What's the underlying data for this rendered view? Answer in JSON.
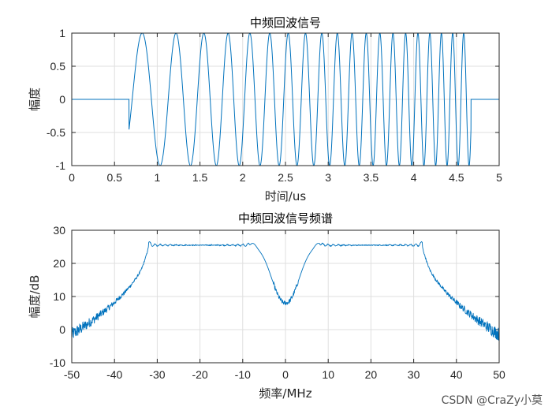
{
  "watermark": "CSDN @CraZy小莫",
  "colors": {
    "line": "#0072BD",
    "grid": "#DFDFDF",
    "axis": "#262626"
  },
  "chart_data": [
    {
      "type": "line",
      "title": "中频回波信号",
      "xlabel": "时间/us",
      "ylabel": "幅度",
      "xlim": [
        0,
        5
      ],
      "ylim": [
        -1,
        1
      ],
      "xticks": [
        0,
        0.5,
        1,
        1.5,
        2,
        2.5,
        3,
        3.5,
        4,
        4.5,
        5
      ],
      "yticks": [
        -1,
        -0.5,
        0,
        0.5,
        1
      ],
      "xticklabels": [
        "0",
        "0.5",
        "1",
        "1.5",
        "2",
        "2.5",
        "3",
        "3.5",
        "4",
        "4.5",
        "5"
      ],
      "yticklabels": [
        "-1",
        "-0.5",
        "0",
        "0.5",
        "1"
      ],
      "grid": true,
      "series": [
        {
          "description": "LFM chirp echo, unit amplitude",
          "pulse_start": 0.67,
          "pulse_end": 4.67,
          "f_start_MHz": 8,
          "f_end_MHz": 32
        }
      ]
    },
    {
      "type": "line",
      "title": "中频回波信号频谱",
      "xlabel": "频率/MHz",
      "ylabel": "幅度/dB",
      "xlim": [
        -50,
        50
      ],
      "ylim": [
        -10,
        30
      ],
      "xticks": [
        -50,
        -40,
        -30,
        -20,
        -10,
        0,
        10,
        20,
        30,
        40,
        50
      ],
      "yticks": [
        -10,
        0,
        10,
        20,
        30
      ],
      "xticklabels": [
        "-50",
        "-40",
        "-30",
        "-20",
        "-10",
        "0",
        "10",
        "20",
        "30",
        "40",
        "50"
      ],
      "yticklabels": [
        "-10",
        "0",
        "10",
        "20",
        "30"
      ],
      "grid": true,
      "series": [
        {
          "description": "magnitude spectrum, symmetric",
          "passband_MHz": [
            8,
            32
          ],
          "passband_level_dB": 25.5,
          "peak_dB": 26.5,
          "dc_level_dB": 8,
          "edge_level_dB": -1.5
        }
      ]
    }
  ]
}
